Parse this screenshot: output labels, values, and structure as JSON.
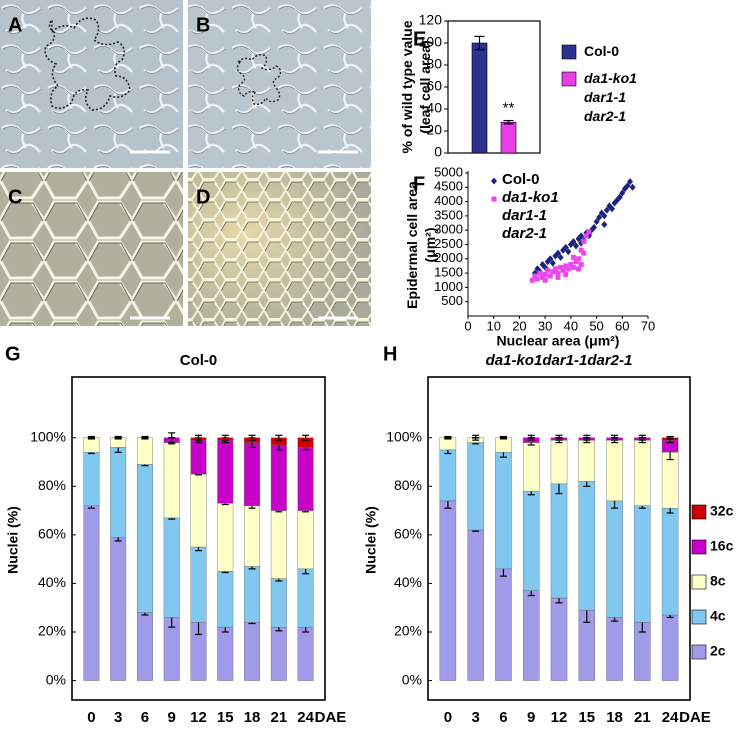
{
  "micrographs": [
    {
      "label": "A"
    },
    {
      "label": "B"
    },
    {
      "label": "C"
    },
    {
      "label": "D"
    }
  ],
  "chart_data": [
    {
      "type": "bar",
      "panel": "E",
      "ylabel": [
        "% of wild type value",
        "(leaf cell area)"
      ],
      "categories": [
        null
      ],
      "series": [
        {
          "name": "Col-0",
          "color": "#2e3192",
          "values": [
            100
          ],
          "errors": [
            6
          ]
        },
        {
          "name": "da1-ko1 dar1-1 dar2-1",
          "color": "#e83ee8",
          "values": [
            28
          ],
          "errors": [
            1.5
          ]
        }
      ],
      "annotations": [
        {
          "text": "**"
        }
      ],
      "ylim": [
        0,
        120
      ],
      "yticks": [
        0,
        20,
        40,
        60,
        80,
        100,
        120
      ],
      "legend": "right"
    },
    {
      "type": "scatter",
      "panel": "F",
      "xlabel": "Nuclear area (μm²)",
      "ylabel": [
        "Epidermal cell area",
        "(μm²)"
      ],
      "series": [
        {
          "name": "Col-0",
          "color": "#1a237e",
          "marker": "diamond",
          "x": [
            26,
            27,
            28,
            29,
            30,
            31,
            32,
            33,
            34,
            35,
            36,
            37,
            38,
            39,
            40,
            41,
            42,
            43,
            44,
            45,
            46,
            47,
            48,
            49,
            50,
            51,
            52,
            53,
            54,
            55,
            56,
            57,
            58,
            59,
            60,
            61,
            62,
            63,
            64,
            53,
            47,
            44
          ],
          "values": [
            1500,
            1650,
            1550,
            1800,
            1700,
            1900,
            2000,
            1850,
            2100,
            2200,
            2050,
            2300,
            2400,
            2250,
            2500,
            2600,
            2450,
            2700,
            2800,
            2650,
            2900,
            2850,
            3000,
            3100,
            3300,
            3450,
            3600,
            3500,
            3700,
            3850,
            3750,
            3950,
            4050,
            4150,
            4300,
            4450,
            4550,
            4700,
            4500,
            3200,
            2800,
            2550
          ]
        },
        {
          "name": "da1-ko1 dar1-1 dar2-1",
          "color": "#ee44ee",
          "marker": "square",
          "x": [
            25,
            26,
            27,
            28,
            29,
            30,
            31,
            32,
            33,
            34,
            35,
            36,
            37,
            38,
            39,
            40,
            41,
            42,
            43,
            44,
            45,
            46,
            47,
            44,
            38,
            30,
            35,
            41,
            45,
            43
          ],
          "values": [
            1250,
            1400,
            1300,
            1500,
            1350,
            1450,
            1600,
            1400,
            1550,
            1650,
            1500,
            1700,
            1600,
            1750,
            1650,
            1800,
            1700,
            1900,
            2000,
            2300,
            2600,
            2800,
            2950,
            1800,
            1450,
            1250,
            1350,
            2050,
            2200,
            1650
          ]
        }
      ],
      "xlim": [
        0,
        70
      ],
      "xticks": [
        0,
        10,
        20,
        30,
        40,
        50,
        60,
        70
      ],
      "ylim": [
        0,
        5000
      ],
      "yticks": [
        500,
        1000,
        1500,
        2000,
        2500,
        3000,
        3500,
        4000,
        4500,
        5000
      ],
      "legend": "upper left"
    },
    {
      "type": "stacked_bar",
      "panel": "G",
      "title": "Col-0",
      "xlabel": "DAE",
      "ylabel": "Nuclei (%)",
      "categories": [
        "0",
        "3",
        "6",
        "9",
        "12",
        "15",
        "18",
        "21",
        "24"
      ],
      "series": [
        {
          "name": "2c",
          "color": "#a09ae8",
          "values": [
            72,
            59,
            28,
            26,
            24,
            22,
            24,
            22,
            22
          ],
          "errors": [
            1,
            1.5,
            1,
            4,
            5,
            2,
            0.5,
            1.5,
            2
          ]
        },
        {
          "name": "4c",
          "color": "#80c8f0",
          "values": [
            22,
            37,
            61,
            41,
            31,
            23,
            23,
            20,
            24
          ],
          "errors": [
            0.5,
            2,
            0.5,
            0.5,
            1.5,
            0.5,
            1,
            1,
            2
          ]
        },
        {
          "name": "8c",
          "color": "#ffffc8",
          "values": [
            6,
            4,
            11,
            31,
            30,
            28,
            25,
            28,
            24
          ],
          "errors": [
            0.5,
            0.5,
            0.5,
            0.5,
            0.3,
            0.5,
            1,
            0.5,
            0.5
          ]
        },
        {
          "name": "16c",
          "color": "#c800c8",
          "values": [
            0,
            0,
            0,
            2,
            14,
            26,
            26,
            27,
            26
          ],
          "errors": [
            0,
            0,
            0,
            2,
            1,
            1,
            2,
            2,
            1
          ]
        },
        {
          "name": "32c",
          "color": "#cc0000",
          "values": [
            0,
            0,
            0,
            0,
            1,
            1,
            2,
            3,
            4
          ],
          "errors": [
            0,
            0,
            0,
            0,
            1,
            1,
            1,
            1,
            1
          ]
        }
      ],
      "ylim": [
        -8,
        125
      ],
      "yticks": [
        {
          "value": 0,
          "label": "0%"
        },
        {
          "value": 20,
          "label": "20%"
        },
        {
          "value": 40,
          "label": "40%"
        },
        {
          "value": 60,
          "label": "60%"
        },
        {
          "value": 80,
          "label": "80%"
        },
        {
          "value": 100,
          "label": "100%"
        }
      ],
      "legend": false
    },
    {
      "type": "stacked_bar",
      "panel": "H",
      "title": "da1-ko1dar1-1dar2-1",
      "xlabel": "DAE",
      "ylabel": "Nuclei (%)",
      "categories": [
        "0",
        "3",
        "6",
        "9",
        "12",
        "15",
        "18",
        "21",
        "24"
      ],
      "series": [
        {
          "name": "2c",
          "color": "#a09ae8",
          "values": [
            74,
            62,
            46,
            37,
            34,
            29,
            26,
            24,
            27
          ],
          "errors": [
            3,
            0.5,
            3,
            2,
            2,
            5,
            1.5,
            4,
            1
          ]
        },
        {
          "name": "4c",
          "color": "#80c8f0",
          "values": [
            21,
            36,
            48,
            41,
            47,
            53,
            48,
            48,
            44
          ],
          "errors": [
            1.5,
            0.5,
            2,
            1.5,
            4,
            2,
            3,
            1,
            2
          ]
        },
        {
          "name": "8c",
          "color": "#ffffc8",
          "values": [
            5,
            2,
            6,
            20,
            18,
            17,
            25,
            27,
            23
          ],
          "errors": [
            0.5,
            1,
            0.5,
            1,
            1,
            1,
            1,
            1,
            3
          ]
        },
        {
          "name": "16c",
          "color": "#c800c8",
          "values": [
            0,
            0,
            0,
            2,
            1,
            1,
            1,
            1,
            5
          ],
          "errors": [
            0,
            0,
            0,
            1,
            1,
            1,
            1,
            1,
            1
          ]
        },
        {
          "name": "32c",
          "color": "#cc0000",
          "values": [
            0,
            0,
            0,
            0,
            0,
            0,
            0,
            0,
            1
          ],
          "errors": [
            0,
            0,
            0,
            0,
            0,
            0,
            0,
            0,
            0.5
          ]
        }
      ],
      "ylim": [
        -8,
        125
      ],
      "yticks": [
        {
          "value": 0,
          "label": "0%"
        },
        {
          "value": 20,
          "label": "20%"
        },
        {
          "value": 40,
          "label": "40%"
        },
        {
          "value": 60,
          "label": "60%"
        },
        {
          "value": 80,
          "label": "80%"
        },
        {
          "value": 100,
          "label": "100%"
        }
      ],
      "legend": "right"
    }
  ]
}
